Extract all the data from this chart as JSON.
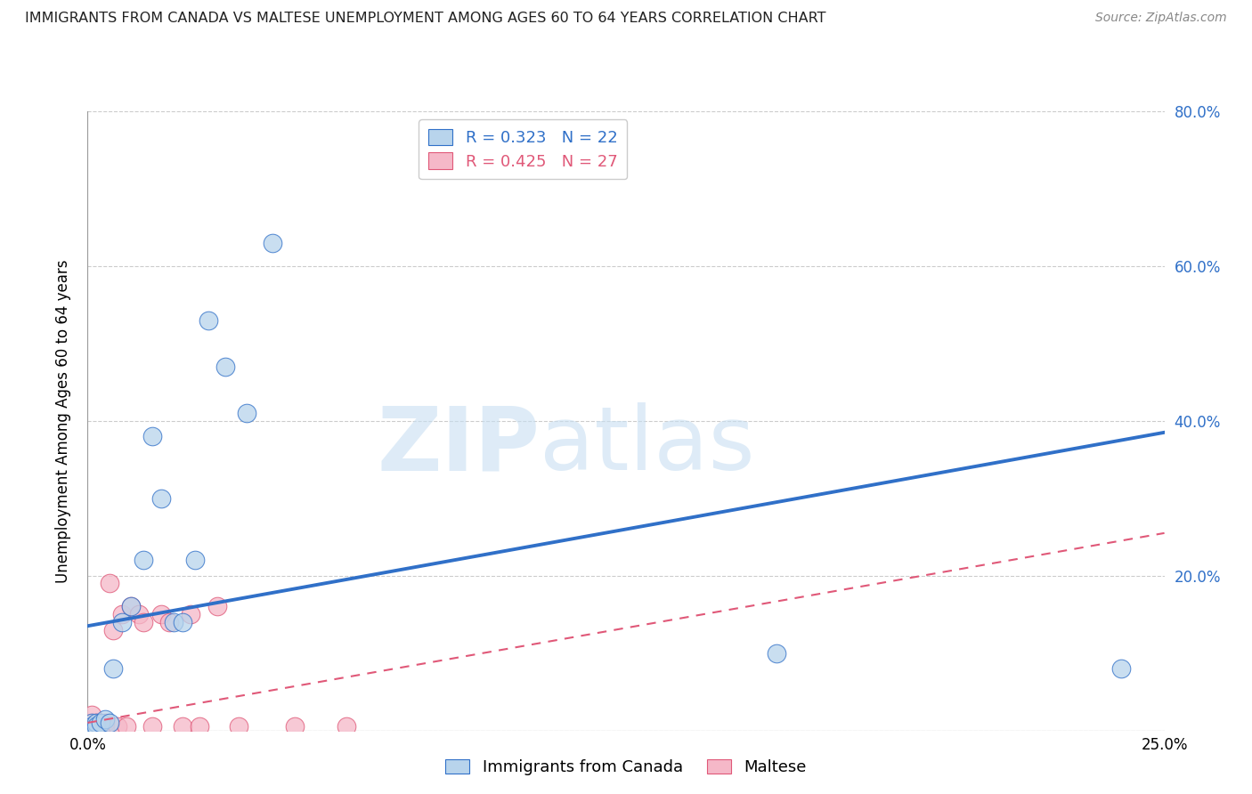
{
  "title": "IMMIGRANTS FROM CANADA VS MALTESE UNEMPLOYMENT AMONG AGES 60 TO 64 YEARS CORRELATION CHART",
  "source": "Source: ZipAtlas.com",
  "ylabel": "Unemployment Among Ages 60 to 64 years",
  "xlim": [
    0.0,
    0.25
  ],
  "ylim": [
    0.0,
    0.8
  ],
  "xticks": [
    0.0,
    0.05,
    0.1,
    0.15,
    0.2,
    0.25
  ],
  "yticks": [
    0.0,
    0.2,
    0.4,
    0.6,
    0.8
  ],
  "xtick_labels": [
    "0.0%",
    "",
    "",
    "",
    "",
    "25.0%"
  ],
  "ytick_labels_right": [
    "",
    "20.0%",
    "40.0%",
    "60.0%",
    "80.0%"
  ],
  "canada_R": 0.323,
  "canada_N": 22,
  "maltese_R": 0.425,
  "maltese_N": 27,
  "canada_color": "#b8d4ec",
  "maltese_color": "#f5b8c8",
  "canada_line_color": "#3070c8",
  "maltese_line_color": "#e05878",
  "canada_trendline": [
    0.0,
    0.25,
    0.135,
    0.385
  ],
  "maltese_trendline": [
    0.0,
    0.25,
    0.01,
    0.255
  ],
  "canada_x": [
    0.001,
    0.001,
    0.002,
    0.002,
    0.003,
    0.004,
    0.005,
    0.006,
    0.008,
    0.01,
    0.013,
    0.015,
    0.017,
    0.02,
    0.022,
    0.025,
    0.028,
    0.032,
    0.037,
    0.043,
    0.16,
    0.24
  ],
  "canada_y": [
    0.01,
    0.005,
    0.01,
    0.005,
    0.01,
    0.015,
    0.01,
    0.08,
    0.14,
    0.16,
    0.22,
    0.38,
    0.3,
    0.14,
    0.14,
    0.22,
    0.53,
    0.47,
    0.41,
    0.63,
    0.1,
    0.08
  ],
  "maltese_x": [
    0.001,
    0.001,
    0.001,
    0.002,
    0.002,
    0.003,
    0.003,
    0.004,
    0.004,
    0.005,
    0.006,
    0.007,
    0.008,
    0.009,
    0.01,
    0.012,
    0.013,
    0.015,
    0.017,
    0.019,
    0.022,
    0.024,
    0.026,
    0.03,
    0.035,
    0.048,
    0.06
  ],
  "maltese_y": [
    0.005,
    0.01,
    0.02,
    0.005,
    0.01,
    0.005,
    0.01,
    0.005,
    0.01,
    0.19,
    0.13,
    0.005,
    0.15,
    0.005,
    0.16,
    0.15,
    0.14,
    0.005,
    0.15,
    0.14,
    0.005,
    0.15,
    0.005,
    0.16,
    0.005,
    0.005,
    0.005
  ],
  "watermark_zip": "ZIP",
  "watermark_atlas": "atlas",
  "legend_entries": [
    "Immigrants from Canada",
    "Maltese"
  ],
  "background_color": "#ffffff"
}
